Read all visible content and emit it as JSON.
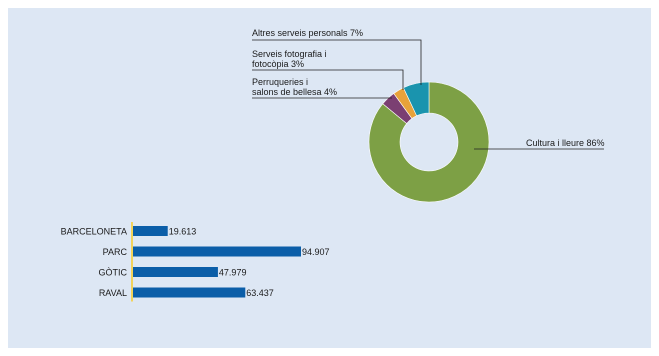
{
  "colors": {
    "background": "#dde7f4",
    "bar": "#0b5ea8",
    "axis": "#f2d35a",
    "leader": "#222222"
  },
  "chart_data": [
    {
      "type": "pie",
      "donut": true,
      "slices": [
        {
          "label": "Cultura i lleure",
          "value": 86,
          "text": "Cultura i lleure 86%",
          "color": "#7da045"
        },
        {
          "label": "Perruqueries i salons de bellesa",
          "value": 4,
          "lines": [
            "Perruqueries i",
            "salons de bellesa 4%"
          ],
          "color": "#7b3f72"
        },
        {
          "label": "Serveis fotografia i fotocòpia",
          "value": 3,
          "lines": [
            "Serveis fotografia i",
            "fotocòpia 3%"
          ],
          "color": "#e8a23a"
        },
        {
          "label": "Altres serveis personals",
          "value": 7,
          "text": "Altres serveis personals 7%",
          "color": "#1a94ae"
        }
      ]
    },
    {
      "type": "bar",
      "orientation": "horizontal",
      "categories": [
        "BARCELONETA",
        "PARC",
        "GÒTIC",
        "RAVAL"
      ],
      "values": [
        19.613,
        94.907,
        47.979,
        63.437
      ],
      "value_labels": [
        "19.613",
        "94.907",
        "47.979",
        "63.437"
      ],
      "xlim": [
        0,
        100
      ]
    }
  ]
}
